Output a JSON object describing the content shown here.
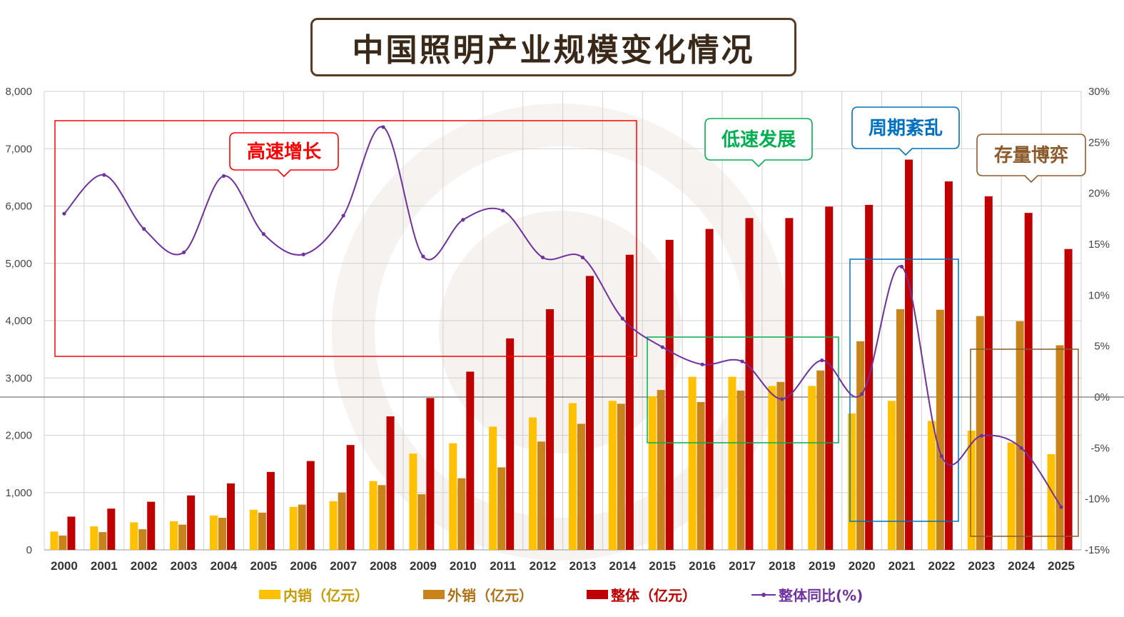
{
  "chart_data": {
    "type": "bar",
    "title": "中国照明产业规模变化情况",
    "categories": [
      "2000",
      "2001",
      "2002",
      "2003",
      "2004",
      "2005",
      "2006",
      "2007",
      "2008",
      "2009",
      "2010",
      "2011",
      "2012",
      "2013",
      "2014",
      "2015",
      "2016",
      "2017",
      "2018",
      "2019",
      "2020",
      "2021",
      "2022",
      "2023",
      "2024",
      "2025"
    ],
    "series": [
      {
        "name": "内销（亿元）",
        "color": "#ffc000",
        "axis": "left",
        "values": [
          320,
          410,
          480,
          500,
          600,
          700,
          750,
          850,
          1200,
          1680,
          1860,
          2150,
          2310,
          2560,
          2600,
          2680,
          3020,
          3020,
          2860,
          2860,
          2380,
          2600,
          2250,
          2080,
          1870,
          1670
        ]
      },
      {
        "name": "外销（亿元）",
        "color": "#c8831a",
        "axis": "left",
        "values": [
          250,
          310,
          360,
          440,
          560,
          650,
          790,
          1000,
          1130,
          970,
          1250,
          1440,
          1890,
          2200,
          2550,
          2790,
          2580,
          2780,
          2930,
          3130,
          3640,
          4200,
          4190,
          4080,
          3990,
          3570
        ]
      },
      {
        "name": "整体（亿元）",
        "color": "#c00000",
        "axis": "left",
        "values": [
          580,
          720,
          840,
          950,
          1160,
          1360,
          1550,
          1830,
          2330,
          2650,
          3110,
          3690,
          4200,
          4780,
          5150,
          5410,
          5600,
          5790,
          5790,
          5990,
          6020,
          6810,
          6430,
          6170,
          5880,
          5250
        ]
      },
      {
        "name": "整体同比(%)",
        "color": "#7030a0",
        "axis": "right",
        "type": "line",
        "values": [
          18.0,
          21.8,
          16.5,
          14.2,
          21.7,
          16.0,
          14.0,
          17.8,
          26.5,
          13.8,
          17.4,
          18.3,
          13.7,
          13.7,
          7.7,
          4.9,
          3.2,
          3.5,
          -0.2,
          3.6,
          0.3,
          12.8,
          -5.8,
          -3.8,
          -5.0,
          -10.8
        ]
      }
    ],
    "ylim": [
      0,
      8000
    ],
    "yticks": [
      "0",
      "1,000",
      "2,000",
      "3,000",
      "4,000",
      "5,000",
      "6,000",
      "7,000",
      "8,000"
    ],
    "y2lim": [
      -15,
      30
    ],
    "y2ticks": [
      "-15%",
      "-10%",
      "-5%",
      "0%",
      "5%",
      "10%",
      "15%",
      "20%",
      "25%",
      "30%"
    ],
    "grid": true,
    "legend": "bottom",
    "annotations": [
      {
        "text": "高速增长",
        "color": "#ff0000",
        "from": "2000",
        "to": "2014"
      },
      {
        "text": "低速发展",
        "color": "#00b050",
        "from": "2015",
        "to": "2019"
      },
      {
        "text": "周期紊乱",
        "color": "#0070c0",
        "from": "2020",
        "to": "2022"
      },
      {
        "text": "存量博弈",
        "color": "#8b5a2b",
        "from": "2023",
        "to": "2025"
      }
    ]
  }
}
